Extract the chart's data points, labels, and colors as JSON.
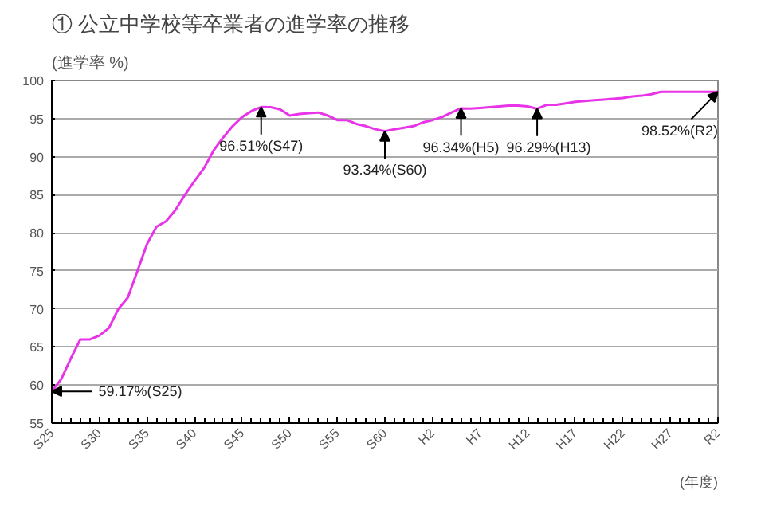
{
  "chart_data": {
    "type": "line",
    "title": "① 公立中学校等卒業者の進学率の推移",
    "ylabel": "(進学率  %)",
    "xlabel": "(年度)",
    "categories": [
      "S25",
      null,
      null,
      null,
      null,
      "S30",
      null,
      null,
      null,
      null,
      "S35",
      null,
      null,
      null,
      null,
      "S40",
      null,
      null,
      null,
      null,
      "S45",
      null,
      null,
      null,
      null,
      "S50",
      null,
      null,
      null,
      null,
      "S55",
      null,
      null,
      null,
      null,
      "S60",
      null,
      null,
      null,
      null,
      "H2",
      null,
      null,
      null,
      null,
      "H7",
      null,
      null,
      null,
      null,
      "H12",
      null,
      null,
      null,
      null,
      "H17",
      null,
      null,
      null,
      null,
      "H22",
      null,
      null,
      null,
      null,
      "H27",
      null,
      null,
      null,
      null,
      "R2"
    ],
    "series": [
      {
        "color": "#e833e8",
        "values": [
          59.17,
          60.8,
          63.5,
          66.0,
          66.0,
          66.5,
          67.5,
          70.0,
          71.5,
          75.0,
          78.5,
          80.8,
          81.5,
          83.0,
          85.0,
          86.8,
          88.5,
          90.8,
          92.5,
          94.0,
          95.2,
          96.0,
          96.51,
          96.5,
          96.2,
          95.4,
          95.6,
          95.7,
          95.8,
          95.4,
          94.8,
          94.8,
          94.3,
          94.0,
          93.6,
          93.34,
          93.6,
          93.8,
          94.0,
          94.5,
          94.8,
          95.2,
          95.8,
          96.34,
          96.3,
          96.4,
          96.5,
          96.6,
          96.7,
          96.7,
          96.6,
          96.29,
          96.8,
          96.8,
          97.0,
          97.2,
          97.3,
          97.4,
          97.5,
          97.6,
          97.7,
          97.9,
          98.0,
          98.2,
          98.5,
          98.5,
          98.5,
          98.5,
          98.5,
          98.5,
          98.52
        ]
      }
    ],
    "ylim": [
      55,
      100
    ],
    "yticks": [
      55,
      60,
      65,
      70,
      75,
      80,
      85,
      90,
      95,
      100
    ],
    "grid": "y",
    "marker": "none",
    "line_style": "solid",
    "annotations": [
      {
        "text": "59.17%(S25)",
        "x": "S25",
        "y": 59.17
      },
      {
        "text": "96.51%(S47)",
        "y": 96.51
      },
      {
        "text": "93.34%(S60)",
        "x": "S60",
        "y": 93.34
      },
      {
        "text": "96.34%(H5)",
        "y": 96.34
      },
      {
        "text": "96.29%(H13)",
        "y": 96.29
      },
      {
        "text": "98.52%(R2)",
        "x": "R2",
        "y": 98.52
      }
    ]
  }
}
